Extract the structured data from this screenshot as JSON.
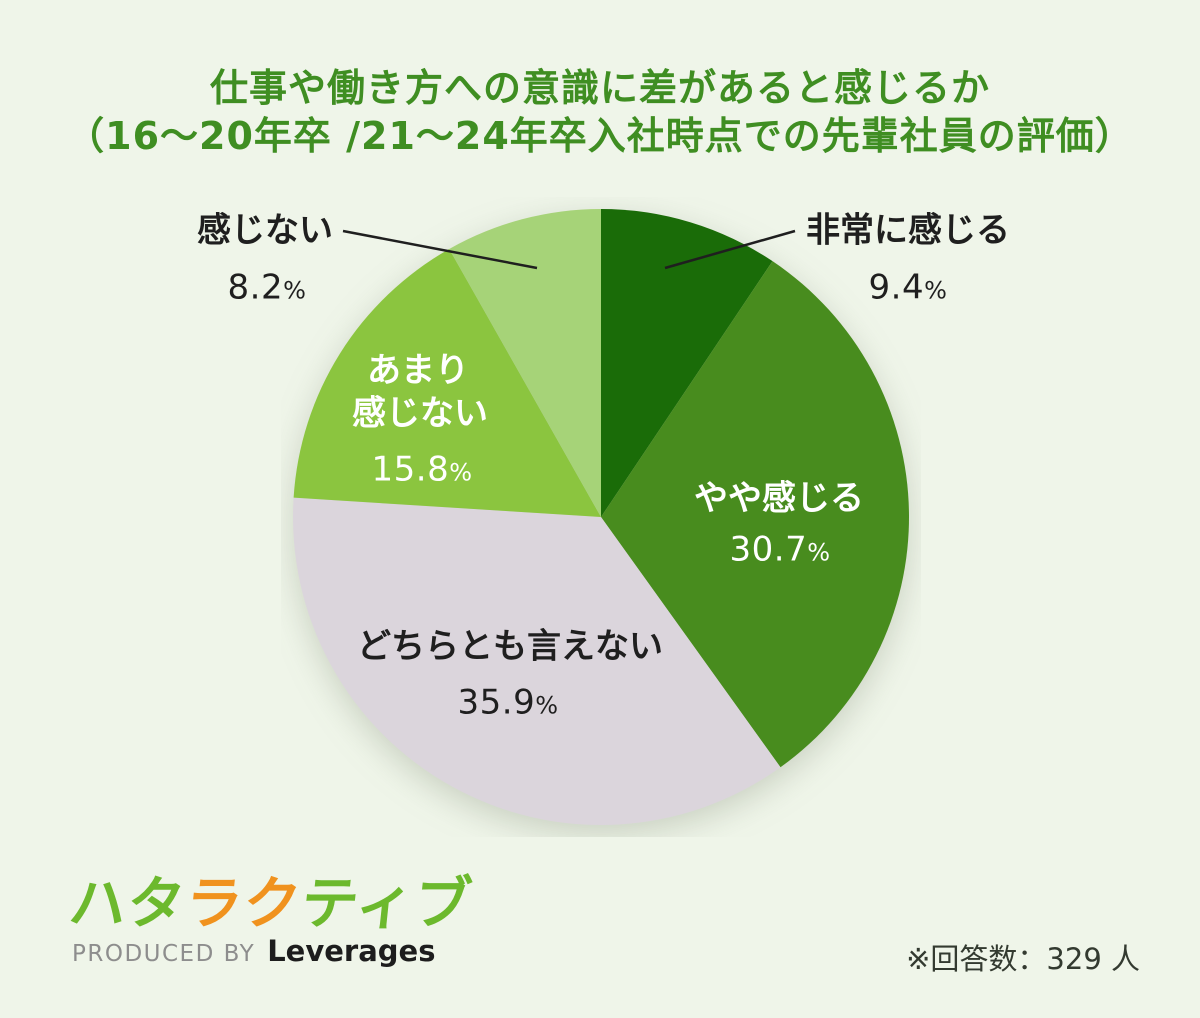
{
  "title": {
    "line1": "仕事や働き方への意識に差があると感じるか",
    "line2": "（16〜20年卒 /21〜24年卒入社時点での先輩社員の評価）"
  },
  "chart_data": {
    "type": "pie",
    "title": "仕事や働き方への意識に差があると感じるか（16〜20年卒 /21〜24年卒入社時点での先輩社員の評価）",
    "categories": [
      "非常に感じる",
      "やや感じる",
      "どちらとも言えない",
      "あまり感じない",
      "感じない"
    ],
    "values": [
      9.4,
      30.7,
      35.9,
      15.8,
      8.2
    ],
    "unit": "%",
    "colors": [
      "#1a6c08",
      "#488c1e",
      "#dbd5dc",
      "#8bc53f",
      "#a6d378"
    ],
    "start_angle_deg": 0,
    "direction": "clockwise",
    "legend_position": "labels-on-and-around-pie",
    "label_lines": [
      [
        "非常に感じる"
      ],
      [
        "やや感じる"
      ],
      [
        "どちらとも言えない"
      ],
      [
        "あまり",
        "感じない"
      ],
      [
        "感じない"
      ]
    ]
  },
  "footer": {
    "logo": {
      "part1": "ハタ",
      "part2": "ラク",
      "part3": "ティブ"
    },
    "produced_by": "PRODUCED BY",
    "company": "Leverages",
    "note": "※回答数：329 人"
  },
  "colors": {
    "background": "#eff5e9",
    "title_green": "#3f8e22",
    "label_text": "#1f1f1f",
    "inside_label_text": "#ffffff",
    "logo_green": "#6cb92d",
    "logo_orange": "#f0921e",
    "leader_line": "#1f1f1f"
  }
}
